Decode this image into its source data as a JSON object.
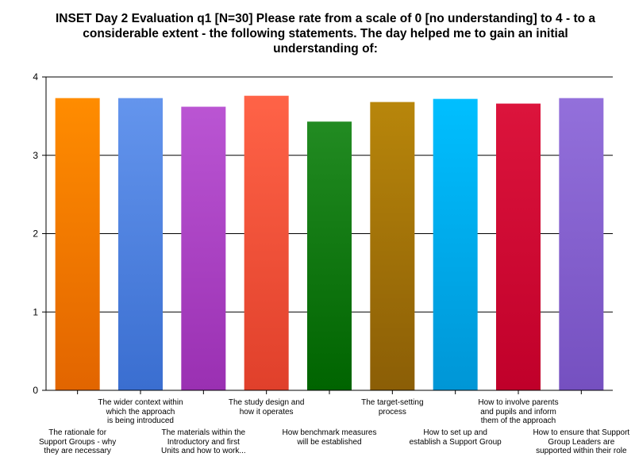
{
  "chart_data": {
    "type": "bar",
    "title": "INSET Day 2 Evaluation q1 [N=30] Please rate from a scale of 0 [no understanding] to 4 - to a\nconsiderable extent - the following statements.  The day helped me to gain an initial\nunderstanding of:",
    "categories": [
      "The rationale for\nSupport Groups - why\nthey are necessary",
      "The wider context within\nwhich the approach\nis being introduced",
      "The materials within the\nIntroductory and first\nUnits and how to work...",
      "The study design and\nhow it operates",
      "How benchmark measures\nwill be established",
      "The target-setting\nprocess",
      "How to set up and\nestablish a Support Group",
      "How to involve parents\nand pupils and inform\nthem of the approach",
      "How to ensure that Support\nGroup Leaders are\nsupported within their role"
    ],
    "values": [
      3.73,
      3.73,
      3.62,
      3.76,
      3.43,
      3.68,
      3.72,
      3.66,
      3.73
    ],
    "ylim": [
      0,
      4
    ],
    "yticks": [
      "0",
      "1",
      "2",
      "3",
      "4"
    ],
    "grid": true,
    "colors": [
      [
        "#ff8c00",
        "#e26500"
      ],
      [
        "#6495ed",
        "#3a6ed0"
      ],
      [
        "#ba55d3",
        "#9a30b2"
      ],
      [
        "#ff6347",
        "#e0402b"
      ],
      [
        "#228b22",
        "#006400"
      ],
      [
        "#b8860b",
        "#8b5e06"
      ],
      [
        "#00bfff",
        "#0096d6"
      ],
      [
        "#dc143c",
        "#c0002a"
      ],
      [
        "#9370db",
        "#7550c0"
      ]
    ]
  }
}
